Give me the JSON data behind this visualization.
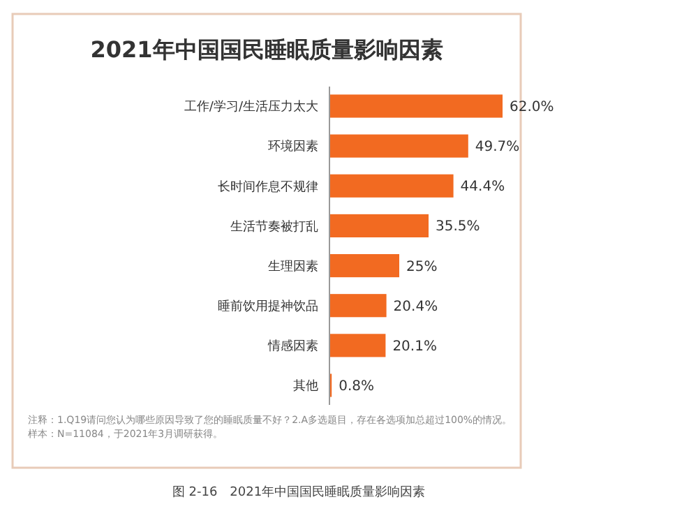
{
  "chart_data": {
    "type": "bar",
    "orientation": "horizontal",
    "title": "2021年中国国民睡眠质量影响因素",
    "categories": [
      "工作/学习/生活压力太大",
      "环境因素",
      "长时间作息不规律",
      "生活节奏被打乱",
      "生理因素",
      "睡前饮用提神饮品",
      "情感因素",
      "其他"
    ],
    "values": [
      62.0,
      49.7,
      44.4,
      35.5,
      25,
      20.4,
      20.1,
      0.8
    ],
    "value_labels": [
      "62.0%",
      "49.7%",
      "44.4%",
      "35.5%",
      "25%",
      "20.4%",
      "20.1%",
      "0.8%"
    ],
    "color": "#f26a21",
    "annotations": [
      "注释：1.Q19请问您认为哪些原因导致了您的睡眠质量不好？2.A多选题目，存在各选项加总超过100%的情况。",
      "样本：N=11084，于2021年3月调研获得。",
      "图 2-16　2021年中国国民睡眠质量影响因素"
    ]
  }
}
